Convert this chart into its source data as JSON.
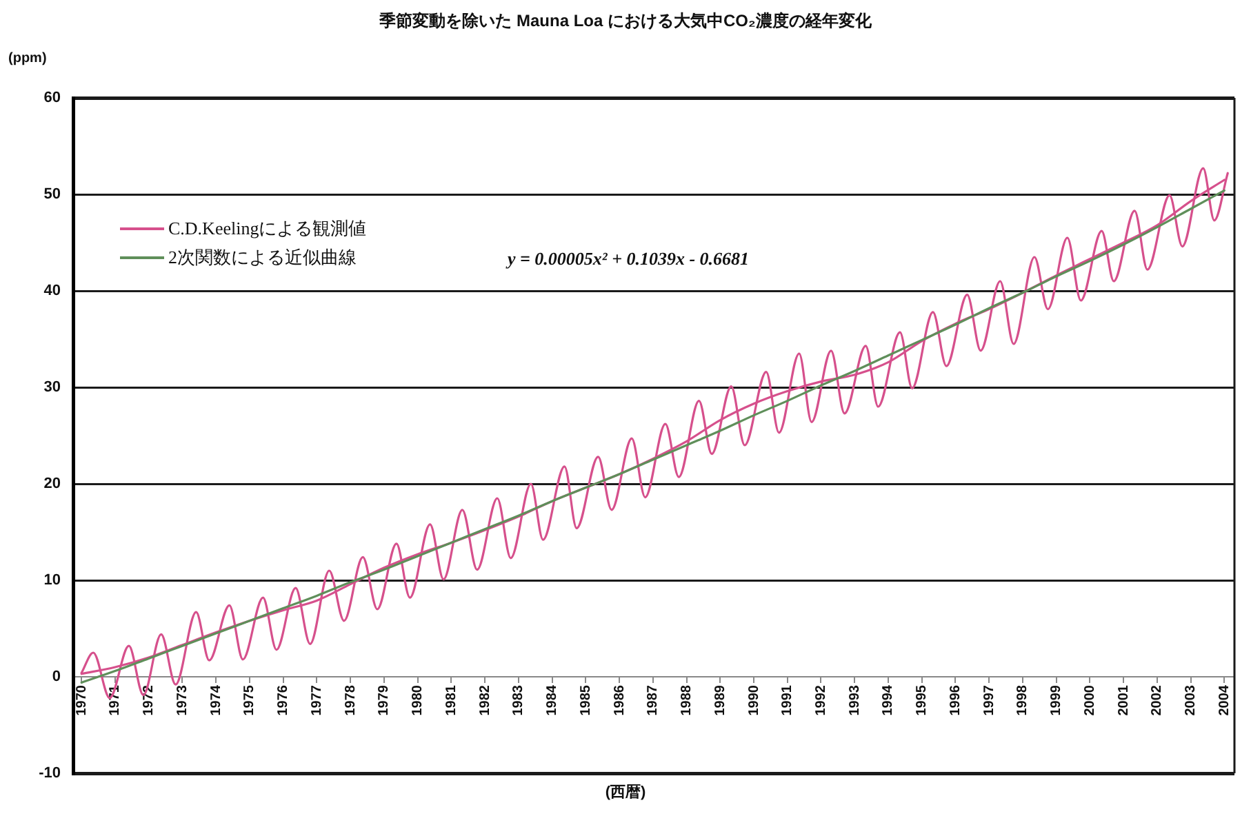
{
  "chart_data": {
    "type": "line",
    "title": "季節変動を除いた Mauna Loa における大気中CO₂濃度の経年変化",
    "ylabel": "(ppm)",
    "xlabel": "(西暦)",
    "annotations": [
      "y = 0.00005x² + 0.1039x - 0.6681"
    ],
    "xlim": [
      1969.75,
      2004.3
    ],
    "xticks": [
      1970,
      1971,
      1972,
      1973,
      1974,
      1975,
      1976,
      1977,
      1978,
      1979,
      1980,
      1981,
      1982,
      1983,
      1984,
      1985,
      1986,
      1987,
      1988,
      1989,
      1990,
      1991,
      1992,
      1993,
      1994,
      1995,
      1996,
      1997,
      1998,
      1999,
      2000,
      2001,
      2002,
      2003,
      2004
    ],
    "ylim": [
      -10,
      60
    ],
    "yticks": [
      -10,
      0,
      10,
      20,
      30,
      40,
      50,
      60
    ],
    "grid": "y",
    "legend": "top left",
    "marker": "none",
    "series": [
      {
        "name": "C.D.Keelingによる観測値",
        "color": "#d6508c",
        "x": [
          1970,
          1970.35,
          1970.84,
          1971.41,
          1971.84,
          1972.37,
          1972.8,
          1973.41,
          1973.8,
          1974.4,
          1974.8,
          1975.4,
          1975.8,
          1976.37,
          1976.8,
          1977.37,
          1977.81,
          1978.37,
          1978.8,
          1979.37,
          1979.77,
          1980.37,
          1980.77,
          1981.33,
          1981.77,
          1982.37,
          1982.77,
          1983.37,
          1983.73,
          1984.37,
          1984.73,
          1985.37,
          1985.77,
          1986.37,
          1986.77,
          1987.37,
          1987.77,
          1988.37,
          1988.75,
          1989.33,
          1989.73,
          1990.37,
          1990.75,
          1991.35,
          1991.72,
          1992.3,
          1992.7,
          1993.33,
          1993.7,
          1994.35,
          1994.71,
          1995.33,
          1995.73,
          1996.35,
          1996.75,
          1997.33,
          1997.73,
          1998.35,
          1998.75,
          1999.33,
          1999.73,
          2000.35,
          2000.71,
          2001.33,
          2001.71,
          2002.37,
          2002.75,
          2003.37,
          2003.7,
          2004.1
        ],
        "values": [
          0.4,
          2.5,
          -2.2,
          3.2,
          -1.9,
          4.4,
          -0.8,
          6.7,
          1.7,
          7.4,
          1.8,
          8.2,
          2.8,
          9.2,
          3.4,
          11.0,
          5.8,
          12.4,
          7.0,
          13.8,
          8.2,
          15.8,
          10.1,
          17.3,
          11.1,
          18.5,
          12.3,
          20.0,
          14.2,
          21.8,
          15.4,
          22.8,
          17.3,
          24.7,
          18.6,
          26.2,
          20.7,
          28.6,
          23.1,
          30.1,
          24.0,
          31.6,
          25.3,
          33.5,
          26.4,
          33.8,
          27.3,
          34.3,
          28.0,
          35.7,
          29.9,
          37.8,
          32.2,
          39.6,
          33.8,
          41.0,
          34.5,
          43.5,
          38.1,
          45.5,
          39.0,
          46.2,
          41.0,
          48.3,
          42.2,
          49.9,
          44.6,
          52.7,
          47.3,
          52.2
        ]
      },
      {
        "color": "#d6508c",
        "x": [
          1970,
          1971,
          1972,
          1973,
          1974,
          1975,
          1976,
          1977,
          1978,
          1979,
          1980,
          1981,
          1982,
          1983,
          1984,
          1985,
          1986,
          1987,
          1988,
          1989,
          1990,
          1991,
          1992,
          1993,
          1994,
          1995,
          1996,
          1997,
          1998,
          1999,
          2000,
          2001,
          2002,
          2003,
          2004
        ],
        "values": [
          0.3,
          1.0,
          2.0,
          3.3,
          4.6,
          5.8,
          6.9,
          7.9,
          9.6,
          11.3,
          12.7,
          13.9,
          15.2,
          16.6,
          18.2,
          19.6,
          21.0,
          22.6,
          24.4,
          26.6,
          28.3,
          29.6,
          30.6,
          31.3,
          32.6,
          34.8,
          36.6,
          38.1,
          39.8,
          41.6,
          43.3,
          45.0,
          46.8,
          49.3,
          51.5
        ]
      },
      {
        "name": "2次関数による近似曲線",
        "color": "#5f8f5a",
        "x": [
          1970,
          1971,
          1972,
          1973,
          1974,
          1975,
          1976,
          1977,
          1978,
          1979,
          1980,
          1981,
          1982,
          1983,
          1984,
          1985,
          1986,
          1987,
          1988,
          1989,
          1990,
          1991,
          1992,
          1993,
          1994,
          1995,
          1996,
          1997,
          1998,
          1999,
          2000,
          2001,
          2002,
          2003,
          2004
        ],
        "values": [
          -0.6,
          0.6,
          1.9,
          3.2,
          4.5,
          5.8,
          7.1,
          8.4,
          9.8,
          11.1,
          12.5,
          13.9,
          15.3,
          16.7,
          18.2,
          19.6,
          21.0,
          22.5,
          24.0,
          25.5,
          27.1,
          28.6,
          30.2,
          31.7,
          33.3,
          34.9,
          36.5,
          38.2,
          39.8,
          41.5,
          43.1,
          44.8,
          46.6,
          48.5,
          50.4
        ]
      }
    ]
  }
}
